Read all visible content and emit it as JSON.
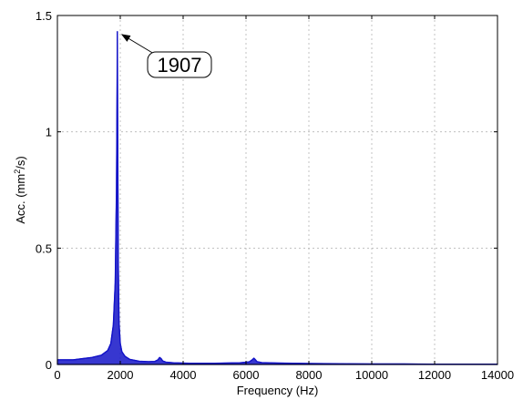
{
  "chart_data": {
    "type": "line",
    "title": "",
    "xlabel": "Frequency (Hz)",
    "ylabel_main": "Acc. (mm",
    "ylabel_sup": "2",
    "ylabel_tail": "/s)",
    "xlim": [
      0,
      14000
    ],
    "ylim": [
      0,
      1.5
    ],
    "grid": true,
    "xticks": [
      0,
      2000,
      4000,
      6000,
      8000,
      10000,
      12000,
      14000
    ],
    "xtick_labels": [
      "0",
      "2000",
      "4000",
      "6000",
      "8000",
      "10000",
      "12000",
      "14000"
    ],
    "yticks": [
      0,
      0.5,
      1,
      1.5
    ],
    "ytick_labels": [
      "0",
      "0.5",
      "1",
      "1.5"
    ],
    "series": [
      {
        "color": "#1414c8",
        "x": [
          0,
          200,
          500,
          800,
          1100,
          1400,
          1600,
          1700,
          1780,
          1840,
          1880,
          1900,
          1907,
          1915,
          1935,
          1960,
          2000,
          2050,
          2150,
          2300,
          2600,
          2900,
          3100,
          3200,
          3250,
          3300,
          3350,
          3450,
          3700,
          4200,
          5000,
          5800,
          6100,
          6200,
          6250,
          6300,
          6350,
          6500,
          7000,
          8000,
          9000,
          10000,
          11000,
          12000,
          13000,
          14000
        ],
        "y": [
          0.02,
          0.02,
          0.02,
          0.025,
          0.03,
          0.04,
          0.06,
          0.09,
          0.17,
          0.35,
          0.75,
          1.2,
          1.43,
          1.1,
          0.45,
          0.18,
          0.09,
          0.055,
          0.035,
          0.022,
          0.014,
          0.012,
          0.013,
          0.02,
          0.03,
          0.025,
          0.015,
          0.01,
          0.007,
          0.005,
          0.005,
          0.007,
          0.011,
          0.02,
          0.027,
          0.02,
          0.012,
          0.008,
          0.006,
          0.004,
          0.003,
          0.002,
          0.002,
          0.001,
          0.001,
          0.001
        ]
      }
    ],
    "annotation": {
      "text": "1907",
      "x": 1907,
      "y": 1.43
    }
  }
}
